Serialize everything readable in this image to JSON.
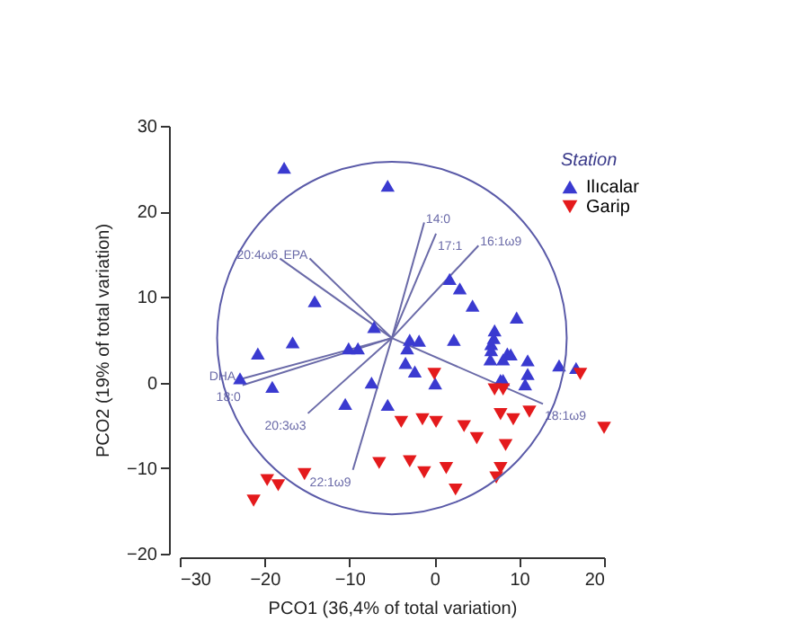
{
  "chart_data": {
    "type": "scatter",
    "xlabel": "PCO1 (36,4% of total variation)",
    "ylabel": "PCO2 (19% of total variation)",
    "legend_title": "Station",
    "xlim": [
      -30,
      20
    ],
    "xticks": [
      -30,
      -20,
      -10,
      0,
      10,
      20
    ],
    "ylim": [
      -20,
      30
    ],
    "yticks": [
      -20,
      -10,
      0,
      10,
      20,
      30
    ],
    "grid": false,
    "legend": "top right",
    "series": [
      {
        "type": "line",
        "name": "14:0",
        "color": "#6a6aa8",
        "x": [
          -5,
          -1.2
        ],
        "values": [
          5.2,
          18.7
        ]
      },
      {
        "type": "line",
        "name": "17:1",
        "color": "#6a6aa8",
        "x": [
          -5,
          0.2
        ],
        "values": [
          5.2,
          17.4
        ]
      },
      {
        "type": "line",
        "name": "16:1ω9",
        "color": "#6a6aa8",
        "x": [
          -5,
          5.2
        ],
        "values": [
          5.2,
          16.0
        ]
      },
      {
        "type": "line",
        "name": "20:4ω6",
        "color": "#6a6aa8",
        "x": [
          -5,
          -18.2
        ],
        "values": [
          5.2,
          14.5
        ]
      },
      {
        "type": "line",
        "name": "EPA",
        "color": "#6a6aa8",
        "x": [
          -5,
          -14.7
        ],
        "values": [
          5.2,
          14.5
        ]
      },
      {
        "type": "line",
        "name": "DHA",
        "color": "#6a6aa8",
        "x": [
          -5,
          -23.2
        ],
        "values": [
          5.2,
          0.3
        ]
      },
      {
        "type": "line",
        "name": "18:0",
        "color": "#6a6aa8",
        "x": [
          -5,
          -22.6
        ],
        "values": [
          5.2,
          -0.3
        ]
      },
      {
        "type": "line",
        "name": "20:3ω3",
        "color": "#6a6aa8",
        "x": [
          -5,
          -14.9
        ],
        "values": [
          5.2,
          -3.6
        ]
      },
      {
        "type": "line",
        "name": "22:1ω9",
        "color": "#6a6aa8",
        "x": [
          -5,
          -9.6
        ],
        "values": [
          5.2,
          -10.2
        ]
      },
      {
        "type": "line",
        "name": "18:1ω9",
        "color": "#6a6aa8",
        "x": [
          -5,
          12.8
        ],
        "values": [
          5.2,
          -2.5
        ]
      },
      {
        "name": "Ilıcalar",
        "color": "#3a3ad0",
        "marker": "triangle",
        "x": [
          -17.7,
          -5.5,
          -14.1,
          -7.1,
          -16.7,
          -20.8,
          -10.1,
          -9.0,
          -22.9,
          -19.1,
          -7.4,
          -10.5,
          -5.5,
          -2.9,
          -1.8,
          -3.2,
          -3.4,
          -2.3,
          0.1,
          1.8,
          3.0,
          2.3,
          4.5,
          9.7,
          7.1,
          7.0,
          6.7,
          6.7,
          6.6,
          8.6,
          9.0,
          8.1,
          11.0,
          11.0,
          10.7,
          8.1,
          14.7,
          16.7,
          7.8
        ],
        "values": [
          25.1,
          23.0,
          9.5,
          6.5,
          4.7,
          3.4,
          4.0,
          4.0,
          0.5,
          -0.5,
          0,
          -2.5,
          -2.6,
          5.0,
          4.9,
          4.0,
          2.3,
          1.3,
          -0.1,
          12.1,
          11.0,
          5.0,
          9.0,
          7.6,
          6.1,
          5.2,
          4.5,
          3.8,
          2.7,
          3.4,
          3.3,
          2.7,
          2.6,
          1.0,
          -0.2,
          0.3,
          2.0,
          1.7,
          0.3
        ]
      },
      {
        "name": "Garip",
        "color": "#e41a1c",
        "marker": "triangle-down",
        "x": [
          -21.3,
          -19.7,
          -18.4,
          -15.3,
          -6.5,
          -3.9,
          -2.9,
          -1.4,
          -1.2,
          0.2,
          0.0,
          1.4,
          2.5,
          3.5,
          5.0,
          7.1,
          8.1,
          7.8,
          9.3,
          8.4,
          7.8,
          7.3,
          11.2,
          17.2,
          20.0
        ],
        "values": [
          -13.8,
          -11.4,
          -12.0,
          -10.7,
          -9.4,
          -4.6,
          -9.2,
          -4.3,
          -10.5,
          -4.6,
          1.0,
          -10.0,
          -12.5,
          -5.1,
          -6.5,
          -0.8,
          -0.8,
          -3.7,
          -4.3,
          -7.3,
          -10.0,
          -11.1,
          -3.4,
          1.0,
          -5.3
        ]
      }
    ]
  }
}
